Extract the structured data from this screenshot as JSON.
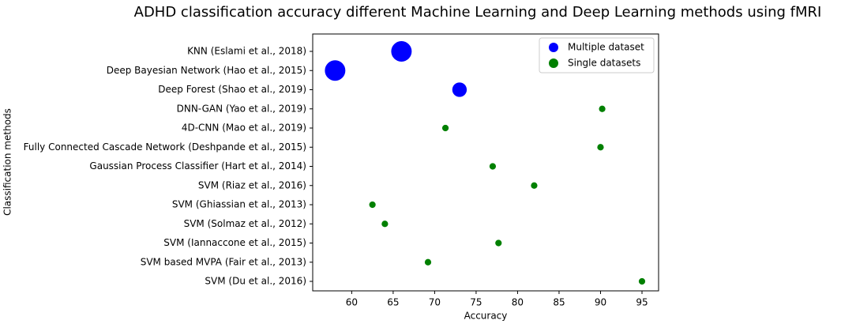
{
  "chart_data": {
    "type": "scatter",
    "title": "ADHD classification accuracy different Machine Learning and Deep Learning methods using fMRI",
    "x_label": "Accuracy",
    "y_label": "Classification methods",
    "categories": [
      "KNN (Eslami et al., 2018)",
      "Deep Bayesian Network (Hao et al., 2015)",
      "Deep Forest (Shao et al., 2019)",
      "DNN-GAN (Yao et al., 2019)",
      "4D-CNN (Mao et al., 2019)",
      "Fully Connected Cascade Network (Deshpande et al., 2015)",
      "Gaussian Process Classifier (Hart et al., 2014)",
      "SVM (Riaz et al., 2016)",
      "SVM (Ghiassian et al., 2013)",
      "SVM (Solmaz et al., 2012)",
      "SVM (Iannaccone et al., 2015)",
      "SVM based MVPA (Fair et al., 2013)",
      "SVM (Du et al., 2016)"
    ],
    "series": [
      {
        "name": "Multiple dataset",
        "color": "#0000ff",
        "values": [
          66,
          58,
          73,
          null,
          null,
          null,
          null,
          null,
          null,
          null,
          null,
          null,
          null
        ],
        "sizes": [
          600,
          600,
          300,
          null,
          null,
          null,
          null,
          null,
          null,
          null,
          null,
          null,
          null
        ]
      },
      {
        "name": "Single datasets",
        "color": "#008000",
        "values": [
          null,
          null,
          null,
          90.2,
          71.3,
          90,
          77,
          82,
          62.5,
          64,
          77.7,
          69.2,
          95
        ],
        "sizes": [
          null,
          null,
          null,
          60,
          60,
          60,
          60,
          60,
          60,
          60,
          60,
          60,
          60
        ]
      }
    ],
    "xlim": [
      55.3,
      97.0
    ],
    "xticks": [
      60,
      65,
      70,
      75,
      80,
      85,
      90,
      95
    ],
    "legend": "upper right"
  }
}
